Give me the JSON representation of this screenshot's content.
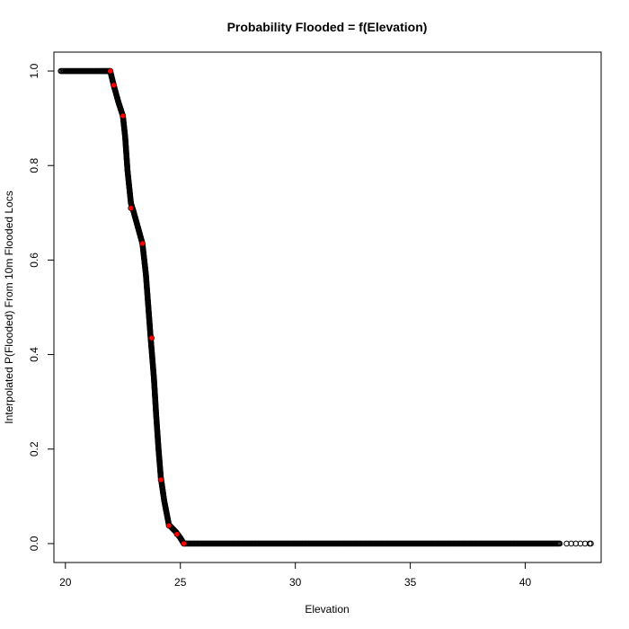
{
  "chart_data": {
    "type": "scatter",
    "title": "Probability Flooded = f(Elevation)",
    "xlabel": "Elevation",
    "ylabel": "Interpolated P(Flooded) From 10m Flooded Locs",
    "xlim": [
      19.5,
      43.3
    ],
    "ylim": [
      -0.04,
      1.04
    ],
    "x_ticks": [
      20,
      25,
      30,
      35,
      40
    ],
    "x_tick_labels": [
      "20",
      "25",
      "30",
      "35",
      "40"
    ],
    "y_ticks": [
      0.0,
      0.2,
      0.4,
      0.6,
      0.8,
      1.0
    ],
    "y_tick_labels": [
      "0.0",
      "0.2",
      "0.4",
      "0.6",
      "0.8",
      "1.0"
    ],
    "grid": false,
    "colors": {
      "points": "#000000",
      "highlight": "#ff0000"
    },
    "series": [
      {
        "marker": "open-circle",
        "color": "#000000",
        "curve": [
          [
            19.8,
            1.0
          ],
          [
            21.5,
            1.0
          ],
          [
            21.6,
            1.0
          ],
          [
            21.7,
            1.0
          ],
          [
            21.8,
            1.0
          ],
          [
            21.95,
            1.0
          ],
          [
            22.1,
            0.97
          ],
          [
            22.3,
            0.935
          ],
          [
            22.5,
            0.905
          ],
          [
            22.6,
            0.86
          ],
          [
            22.7,
            0.79
          ],
          [
            22.85,
            0.72
          ],
          [
            22.95,
            0.705
          ],
          [
            23.15,
            0.67
          ],
          [
            23.35,
            0.635
          ],
          [
            23.5,
            0.57
          ],
          [
            23.7,
            0.44
          ],
          [
            23.85,
            0.35
          ],
          [
            23.95,
            0.27
          ],
          [
            24.05,
            0.2
          ],
          [
            24.15,
            0.14
          ],
          [
            24.3,
            0.09
          ],
          [
            24.5,
            0.04
          ],
          [
            24.8,
            0.025
          ],
          [
            25.0,
            0.012
          ],
          [
            25.15,
            0.0
          ],
          [
            26.0,
            0.0
          ],
          [
            30.0,
            0.0
          ],
          [
            35.0,
            0.0
          ],
          [
            40.0,
            0.0
          ],
          [
            41.5,
            0.0
          ]
        ],
        "scattered": [
          [
            41.8,
            0.0
          ],
          [
            42.0,
            0.0
          ],
          [
            42.2,
            0.0
          ],
          [
            42.4,
            0.0
          ],
          [
            42.6,
            0.0
          ],
          [
            42.8,
            0.0
          ],
          [
            42.85,
            0.0
          ]
        ]
      },
      {
        "marker": "filled-circle",
        "color": "#ff0000",
        "x": [
          21.95,
          22.1,
          22.5,
          22.85,
          23.35,
          23.75,
          24.15,
          24.5,
          24.85,
          25.15
        ],
        "y": [
          1.0,
          0.97,
          0.905,
          0.71,
          0.635,
          0.435,
          0.135,
          0.038,
          0.02,
          0.0
        ]
      }
    ]
  }
}
